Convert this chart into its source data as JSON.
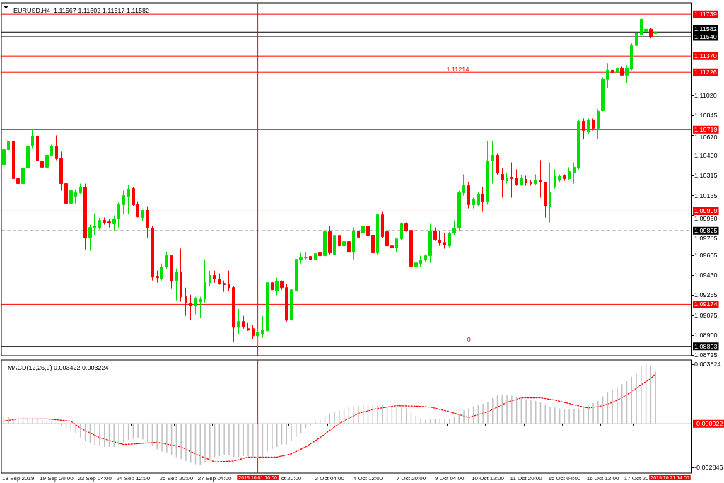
{
  "chart_data": [
    {
      "type": "candlestick",
      "title": "EURUSD,H4  1.11567 1.11602 1.11517 1.11582",
      "tick_labels": "y",
      "categories": [
        null,
        null,
        null,
        "18 Sep 2019",
        null,
        null,
        null,
        null,
        null,
        null,
        null,
        "19 Sep 20:00",
        null,
        null,
        null,
        null,
        null,
        null,
        null,
        "23 Sep 04:00",
        null,
        null,
        null,
        null,
        null,
        null,
        null,
        "24 Sep 12:00",
        null,
        null,
        null,
        null,
        null,
        null,
        null,
        null,
        "25 Sep 20:00",
        null,
        null,
        null,
        null,
        null,
        null,
        null,
        "27 Sep 04:00",
        null,
        null,
        null,
        null,
        null,
        null,
        null,
        null,
        "2019.10.01 10:00",
        null,
        null,
        null,
        null,
        null,
        null,
        "ct 20:00",
        null,
        null,
        null,
        null,
        null,
        null,
        null,
        "3 Oct 04:00",
        null,
        null,
        null,
        null,
        null,
        null,
        null,
        "4 Oct 12:00",
        null,
        null,
        null,
        null,
        null,
        null,
        null,
        null,
        "7 Oct 20:00",
        null,
        null,
        null,
        null,
        null,
        null,
        null,
        "9 Oct 04:00",
        null,
        null,
        null,
        null,
        null,
        null,
        null,
        "10 Oct 12:00",
        null,
        null,
        null,
        null,
        null,
        null,
        null,
        "11 Oct 20:00",
        null,
        null,
        null,
        null,
        null,
        null,
        null,
        "15 Oct 04:00",
        null,
        null,
        null,
        null,
        null,
        null,
        null,
        "16 Oct 12:00",
        null,
        null,
        null,
        null,
        null,
        null,
        "17 Oct 20",
        null,
        null,
        null,
        null,
        null,
        null,
        "2019.10.21 14:00",
        null,
        null,
        null,
        null
      ],
      "colors": [
        "#00e000",
        "#00e000",
        "#ff0000",
        "#ff0000",
        "#00e000",
        "#00e000",
        "#00e000",
        "#ff0000",
        "#ff0000",
        "#00e000",
        "#00e000",
        "#ff0000",
        "#ff0000",
        "#ff0000",
        "#00e000",
        "#00e000",
        "#00e000",
        "#ff0000",
        "#00e000",
        "#00e000",
        "#00e000",
        "#ff0000",
        "#ff0000",
        "#00e000",
        "#00e000",
        "#00e000",
        "#00e000",
        "#ff0000",
        "#ff0000",
        "#00e000",
        "#ff0000",
        "#ff0000",
        "#ff0000",
        "#00e000",
        "#00e000",
        "#ff0000",
        "#00e000",
        "#ff0000",
        "#ff0000",
        "#ff0000",
        "#00e000",
        "#00e000",
        "#00e000",
        "#00e000",
        "#ff0000",
        "#ff0000",
        "#ff0000",
        "#ff0000",
        "#ff0000",
        "#00e000",
        "#ff0000",
        "#ff0000",
        "#ff0000",
        "#00e000",
        "#00e000",
        "#00e000",
        "#ff0000",
        "#00e000",
        "#ff0000",
        "#ff0000",
        "#00e000",
        "#00e000",
        "#00e000",
        "#808080",
        "#ff0000",
        "#00e000",
        "#ff0000",
        "#00e000",
        "#ff0000",
        "#00e000",
        "#ff0000",
        "#00e000",
        "#ff0000",
        "#00e000",
        "#ff0000",
        "#00e000",
        "#ff0000",
        "#ff0000",
        "#00e000",
        "#ff0000",
        "#ff0000",
        "#ff0000",
        "#00e000",
        "#00e000",
        "#ff0000",
        "#ff0000",
        "#00e000",
        "#00e000",
        "#00e000",
        "#00e000",
        "#ff0000",
        "#ff0000",
        "#ff0000",
        "#00e000",
        "#00e000",
        "#00e000",
        "#00e000",
        "#ff0000",
        "#00e000",
        "#00e000",
        "#ff0000",
        "#00e000",
        "#00e000",
        "#ff0000",
        "#ff0000",
        "#00e000",
        "#ff0000",
        "#ff0000",
        "#00e000",
        "#ff0000",
        "#ff0000",
        "#00e000",
        "#ff0000",
        "#ff0000",
        "#00e000",
        "#00e000",
        "#00e000",
        "#ff0000",
        "#00e000",
        "#00e000",
        "#00e000",
        "#ff0000",
        "#00e000",
        "#ff0000",
        "#00e000",
        "#00e000",
        "#00e000",
        "#ff0000",
        "#00e000",
        "#ff0000",
        "#00e000",
        "#00e000",
        "#00e000",
        "#00e000",
        "#00e000",
        "#ff0000",
        "#00e000",
        null,
        null,
        null,
        null,
        null,
        null,
        null
      ],
      "ohlc": [
        [
          1.10411,
          1.10587,
          1.10368,
          1.10542
        ],
        [
          1.10542,
          1.10668,
          1.10449,
          1.10618
        ],
        [
          1.10618,
          1.10668,
          1.1013,
          1.10286
        ],
        [
          1.10286,
          1.10337,
          1.10211,
          1.10242
        ],
        [
          1.10242,
          1.10387,
          1.10223,
          1.10381
        ],
        [
          1.10381,
          1.10587,
          1.10368,
          1.10574
        ],
        [
          1.10574,
          1.10724,
          1.10555,
          1.10662
        ],
        [
          1.10662,
          1.10681,
          1.10381,
          1.10443
        ],
        [
          1.10443,
          1.10618,
          1.10381,
          1.10387
        ],
        [
          1.10387,
          1.10512,
          1.10381,
          1.10493
        ],
        [
          1.10493,
          1.10587,
          1.1048,
          1.10574
        ],
        [
          1.10574,
          1.10668,
          1.10449,
          1.10462
        ],
        [
          1.10462,
          1.10524,
          1.1018,
          1.10242
        ],
        [
          1.10242,
          1.10255,
          1.09948,
          1.10067
        ],
        [
          1.10067,
          1.10211,
          1.10055,
          1.1018
        ],
        [
          1.1013,
          1.10192,
          1.10067,
          1.10161
        ],
        [
          1.10161,
          1.10242,
          1.10149,
          1.10211
        ],
        [
          1.10211,
          1.10242,
          1.0966,
          1.0976
        ],
        [
          1.0976,
          1.09879,
          1.09648,
          1.09854
        ],
        [
          1.09848,
          1.09979,
          1.09785,
          1.09867
        ],
        [
          1.09854,
          1.09942,
          1.09836,
          1.09917
        ],
        [
          1.09917,
          1.09942,
          1.09879,
          1.09898
        ],
        [
          1.09904,
          1.09929,
          1.09854,
          1.09892
        ],
        [
          1.09886,
          1.09961,
          1.09823,
          1.09929
        ],
        [
          1.09929,
          1.10074,
          1.09854,
          1.10055
        ],
        [
          1.10055,
          1.1018,
          1.09973,
          1.10136
        ],
        [
          1.1013,
          1.1023,
          1.09973,
          1.10192
        ],
        [
          1.10198,
          1.10211,
          1.10042,
          1.10055
        ],
        [
          1.10055,
          1.10086,
          1.09942,
          1.09948
        ],
        [
          1.09942,
          1.10011,
          1.09911,
          1.10005
        ],
        [
          1.10005,
          1.10036,
          1.0976,
          1.09854
        ],
        [
          1.09848,
          1.09867,
          1.09385,
          1.09416
        ],
        [
          1.09423,
          1.09473,
          1.09366,
          1.0941
        ],
        [
          1.09398,
          1.09535,
          1.09385,
          1.09504
        ],
        [
          1.09504,
          1.09635,
          1.09491,
          1.09604
        ],
        [
          1.09604,
          1.09604,
          1.09316,
          1.09379
        ],
        [
          1.09379,
          1.09491,
          1.0921,
          1.0946
        ],
        [
          1.0946,
          1.09667,
          1.09197,
          1.09241
        ],
        [
          1.09241,
          1.09322,
          1.09072,
          1.09191
        ],
        [
          1.09185,
          1.0926,
          1.09034,
          1.0916
        ],
        [
          1.0916,
          1.09241,
          1.09085,
          1.09222
        ],
        [
          1.09197,
          1.09241,
          1.09053,
          1.09216
        ],
        [
          1.09222,
          1.09573,
          1.09191,
          1.09366
        ],
        [
          1.09366,
          1.09473,
          1.09335,
          1.09429
        ],
        [
          1.09429,
          1.09473,
          1.09366,
          1.09398
        ],
        [
          1.09398,
          1.09448,
          1.09348,
          1.09354
        ],
        [
          1.0936,
          1.09385,
          1.09285,
          1.09348
        ],
        [
          1.09354,
          1.09473,
          1.09291,
          1.09322
        ],
        [
          1.09322,
          1.09335,
          1.08846,
          1.08971
        ],
        [
          1.08971,
          1.09134,
          1.08909,
          1.09022
        ],
        [
          1.09022,
          1.09072,
          1.08959,
          1.08978
        ],
        [
          1.08959,
          1.09009,
          1.0894,
          1.08946
        ],
        [
          1.08959,
          1.0899,
          1.08865,
          1.08896
        ],
        [
          1.08896,
          1.08959,
          1.08803,
          1.08928
        ],
        [
          1.08915,
          1.09072,
          1.08878,
          1.08946
        ],
        [
          1.0894,
          1.09416,
          1.08834,
          1.09366
        ],
        [
          1.09366,
          1.09398,
          1.09241,
          1.09303
        ],
        [
          1.09291,
          1.0941,
          1.09254,
          1.09379
        ],
        [
          1.09379,
          1.09385,
          1.09303,
          1.09322
        ],
        [
          1.09322,
          1.09354,
          1.09022,
          1.09034
        ],
        [
          1.09034,
          1.09322,
          1.09022,
          1.09303
        ],
        [
          1.09291,
          1.09585,
          1.09285,
          1.09573
        ],
        [
          1.09567,
          1.09629,
          1.09535,
          1.09585
        ],
        [
          1.09585,
          1.09635,
          1.09573,
          1.09585
        ],
        [
          1.09598,
          1.09604,
          1.0951,
          1.09567
        ],
        [
          1.09567,
          1.09729,
          1.09398,
          1.09623
        ],
        [
          1.09629,
          1.09698,
          1.09435,
          1.09604
        ],
        [
          1.09604,
          1.09992,
          1.0951,
          1.09817
        ],
        [
          1.09817,
          1.09867,
          1.09616,
          1.09629
        ],
        [
          1.09616,
          1.09785,
          1.09604,
          1.09779
        ],
        [
          1.09779,
          1.09836,
          1.09679,
          1.09691
        ],
        [
          1.09691,
          1.09773,
          1.09679,
          1.09729
        ],
        [
          1.09729,
          1.09911,
          1.09554,
          1.09635
        ],
        [
          1.09635,
          1.09854,
          1.09573,
          1.09823
        ],
        [
          1.09823,
          1.09836,
          1.09754,
          1.09767
        ],
        [
          1.09804,
          1.09886,
          1.09698,
          1.09867
        ],
        [
          1.09867,
          1.09886,
          1.0976,
          1.09779
        ],
        [
          1.09785,
          1.09804,
          1.09604,
          1.09629
        ],
        [
          1.09629,
          1.09973,
          1.09616,
          1.09967
        ],
        [
          1.09967,
          1.09992,
          1.0976,
          1.09773
        ],
        [
          1.09817,
          1.09836,
          1.09679,
          1.09691
        ],
        [
          1.09691,
          1.09742,
          1.09635,
          1.09673
        ],
        [
          1.09673,
          1.0976,
          1.09635,
          1.09754
        ],
        [
          1.09754,
          1.09898,
          1.09742,
          1.09886
        ],
        [
          1.09886,
          1.09898,
          1.09817,
          1.09823
        ],
        [
          1.09829,
          1.09854,
          1.09441,
          1.0951
        ],
        [
          1.0951,
          1.09604,
          1.0941,
          1.09541
        ],
        [
          1.09535,
          1.09604,
          1.09504,
          1.09567
        ],
        [
          1.09567,
          1.09616,
          1.09554,
          1.09604
        ],
        [
          1.09604,
          1.09886,
          1.09541,
          1.09823
        ],
        [
          1.09823,
          1.09854,
          1.09735,
          1.09748
        ],
        [
          1.09742,
          1.09823,
          1.09691,
          1.09717
        ],
        [
          1.09723,
          1.09804,
          1.09667,
          1.09698
        ],
        [
          1.09691,
          1.09817,
          1.09679,
          1.09804
        ],
        [
          1.09804,
          1.09917,
          1.09785,
          1.09848
        ],
        [
          1.09848,
          1.1018,
          1.09823,
          1.10161
        ],
        [
          1.10161,
          1.10324,
          1.10136,
          1.10223
        ],
        [
          1.10223,
          1.10255,
          1.10023,
          1.10055
        ],
        [
          1.10055,
          1.10117,
          1.10023,
          1.10098
        ],
        [
          1.10055,
          1.10167,
          1.10042,
          1.10149
        ],
        [
          1.10149,
          1.10211,
          1.09992,
          1.10086
        ],
        [
          1.10086,
          1.10618,
          1.10055,
          1.10443
        ],
        [
          1.10443,
          1.10618,
          1.10242,
          1.10493
        ],
        [
          1.10493,
          1.10505,
          1.10317,
          1.10337
        ],
        [
          1.10324,
          1.10381,
          1.10117,
          1.10274
        ],
        [
          1.10267,
          1.10337,
          1.10242,
          1.10292
        ],
        [
          1.10299,
          1.1043,
          1.10117,
          1.10286
        ],
        [
          1.10286,
          1.10368,
          1.10223,
          1.1023
        ],
        [
          1.1023,
          1.10317,
          1.10223,
          1.10286
        ],
        [
          1.1028,
          1.10311,
          1.10223,
          1.10249
        ],
        [
          1.10255,
          1.10274,
          1.10223,
          1.10242
        ],
        [
          1.10242,
          1.10324,
          1.1023,
          1.10274
        ],
        [
          1.10274,
          1.10449,
          1.10117,
          1.10255
        ],
        [
          1.10255,
          1.10255,
          1.09942,
          1.10042
        ],
        [
          1.10036,
          1.1043,
          1.09898,
          1.10161
        ],
        [
          1.10211,
          1.10368,
          1.10198,
          1.10305
        ],
        [
          1.10274,
          1.10324,
          1.10255,
          1.10305
        ],
        [
          1.10311,
          1.10324,
          1.10267,
          1.10286
        ],
        [
          1.10286,
          1.10387,
          1.10274,
          1.10349
        ],
        [
          1.10337,
          1.1043,
          1.10242,
          1.10387
        ],
        [
          1.10381,
          1.10806,
          1.10368,
          1.10793
        ],
        [
          1.10793,
          1.10818,
          1.10637,
          1.10712
        ],
        [
          1.10699,
          1.10818,
          1.10681,
          1.10806
        ],
        [
          1.10806,
          1.10818,
          1.10712,
          1.10731
        ],
        [
          1.10731,
          1.109,
          1.10637,
          1.10881
        ],
        [
          1.10887,
          1.11181,
          1.10881,
          1.11163
        ],
        [
          1.11163,
          1.11307,
          1.11088,
          1.11244
        ],
        [
          1.11244,
          1.11275,
          1.112,
          1.11225
        ],
        [
          1.11225,
          1.11275,
          1.11213,
          1.11263
        ],
        [
          1.11263,
          1.11275,
          1.11194,
          1.112
        ],
        [
          1.112,
          1.11288,
          1.11131,
          1.11263
        ],
        [
          1.11257,
          1.11482,
          1.11244,
          1.11463
        ],
        [
          1.11463,
          1.11588,
          1.11432,
          1.11576
        ],
        [
          1.11557,
          1.11701,
          1.11545,
          1.11695
        ],
        [
          1.11588,
          1.11632,
          1.11476,
          1.11607
        ],
        [
          1.11607,
          1.1162,
          1.11526,
          1.11538
        ],
        [
          1.11567,
          1.11602,
          1.11517,
          1.11582
        ],
        null,
        null,
        null,
        null,
        null,
        null,
        null
      ],
      "ylim": [
        1.0872,
        1.1184
      ],
      "yticks": [
        1.08725,
        {
          "value": 1.089,
          "label": "1.08900"
        },
        1.09075,
        1.09255,
        {
          "value": 1.0943,
          "label": "1.09430"
        },
        1.09605,
        1.09785,
        {
          "value": 1.0996,
          "label": "1.09960"
        },
        1.10135,
        1.10315,
        {
          "value": 1.1049,
          "label": "1.10490"
        },
        {
          "value": 1.1067,
          "label": "1.10670"
        },
        1.10845,
        {
          "value": 1.1102,
          "label": "1.11020"
        }
      ],
      "ref_lines": [
        {
          "axis": "y",
          "value": 1.11739,
          "label": "1.11739",
          "color": "#ff0000"
        },
        {
          "axis": "y",
          "value": 1.11582,
          "label": "1.11582",
          "color": "#000000"
        },
        {
          "axis": "y",
          "value": 1.1154,
          "label": "1.11540",
          "color": "#000000"
        },
        {
          "axis": "y",
          "value": 1.1137,
          "label": "1.11370",
          "color": "#ff0000"
        },
        {
          "axis": "y",
          "value": 1.11226,
          "label": "1.11226",
          "color": "#ff0000"
        },
        {
          "axis": "y",
          "value": 1.10719,
          "label": "1.10719",
          "color": "#ff0000"
        },
        {
          "axis": "y",
          "value": 1.09999,
          "label": "1.09999",
          "color": "#ff0000"
        },
        {
          "axis": "y",
          "value": 1.09825,
          "label": "1.09825",
          "color": "#000000",
          "line_style": "dashed"
        },
        {
          "axis": "y",
          "value": 1.09174,
          "label": "1.09174",
          "color": "#ff0000"
        },
        {
          "axis": "y",
          "value": 1.08803,
          "label": "1.08803",
          "color": "#000000"
        },
        {
          "axis": "x",
          "value": "2019.10.01 10:00",
          "color": "#ff0000"
        },
        {
          "axis": "x",
          "value": "2019.10.21 14:00",
          "color": "#ff0000",
          "line_style": "dotted"
        }
      ],
      "annotations": [
        "1.11214",
        "0"
      ]
    },
    {
      "type": "bar",
      "title": "MACD(12,26,9) 0.003422 0.003224",
      "categories": [
        null,
        null,
        null,
        "18 Sep 2019",
        null,
        null,
        null,
        null,
        null,
        null,
        null,
        "19 Sep 20:00",
        null,
        null,
        null,
        null,
        null,
        null,
        null,
        "23 Sep 04:00",
        null,
        null,
        null,
        null,
        null,
        null,
        null,
        "24 Sep 12:00",
        null,
        null,
        null,
        null,
        null,
        null,
        null,
        null,
        "25 Sep 20:00",
        null,
        null,
        null,
        null,
        null,
        null,
        null,
        "27 Sep 04:00",
        null,
        null,
        null,
        null,
        null,
        null,
        null,
        null,
        "2019.10.01 10:00",
        null,
        null,
        null,
        null,
        null,
        null,
        "ct 20:00",
        null,
        null,
        null,
        null,
        null,
        null,
        null,
        "3 Oct 04:00",
        null,
        null,
        null,
        null,
        null,
        null,
        null,
        "4 Oct 12:00",
        null,
        null,
        null,
        null,
        null,
        null,
        null,
        null,
        "7 Oct 20:00",
        null,
        null,
        null,
        null,
        null,
        null,
        null,
        "9 Oct 04:00",
        null,
        null,
        null,
        null,
        null,
        null,
        null,
        "10 Oct 12:00",
        null,
        null,
        null,
        null,
        null,
        null,
        null,
        "11 Oct 20:00",
        null,
        null,
        null,
        null,
        null,
        null,
        null,
        "15 Oct 04:00",
        null,
        null,
        null,
        null,
        null,
        null,
        null,
        "16 Oct 12:00",
        null,
        null,
        null,
        null,
        null,
        null,
        "17 Oct 20",
        null,
        null,
        null,
        null,
        null,
        null,
        "2019.10.21 14:00",
        null,
        null,
        null,
        null
      ],
      "series": [
        {
          "color": "#c0c0c0",
          "values": [
            0.00045,
            0.00039,
            0.0003,
            0.00024,
            0.00024,
            0.00027,
            0.0003,
            0.00027,
            0.00024,
            0.00015,
            0.0001,
            0,
            -0.00015,
            -0.0003,
            -0.00045,
            -0.00066,
            -0.00091,
            -0.00115,
            -0.00127,
            -0.00139,
            -0.00145,
            -0.00151,
            -0.00151,
            -0.00151,
            -0.00139,
            -0.00121,
            -0.00106,
            -0.001,
            -0.00097,
            -0.00103,
            -0.00121,
            -0.00145,
            -0.00166,
            -0.00181,
            -0.00187,
            -0.00205,
            -0.00217,
            -0.0023,
            -0.00242,
            -0.00254,
            -0.00263,
            -0.00266,
            -0.00248,
            -0.0023,
            -0.00217,
            -0.00211,
            -0.00205,
            -0.00205,
            -0.00217,
            -0.00217,
            -0.00211,
            -0.00211,
            -0.00217,
            -0.00223,
            -0.00217,
            -0.00181,
            -0.00166,
            -0.00151,
            -0.00136,
            -0.00136,
            -0.00115,
            -0.00085,
            -0.0006,
            -0.0003,
            -0.00015,
            0.0001,
            0.00024,
            0.00048,
            0.00066,
            0.00076,
            0.00085,
            0.00097,
            0.00103,
            0.00109,
            0.00115,
            0.00118,
            0.00121,
            0.00121,
            0.00121,
            0.00118,
            0.00112,
            0.00109,
            0.00106,
            0.00103,
            0.00097,
            0.00076,
            0.00051,
            0.0003,
            0.00024,
            0.0003,
            0.0003,
            0.0003,
            0.0003,
            0.00033,
            0.00039,
            0.0006,
            0.00085,
            0.00097,
            0.00112,
            0.00121,
            0.00127,
            0.00136,
            0.00163,
            0.00181,
            0.00187,
            0.00187,
            0.00181,
            0.00172,
            0.00163,
            0.00157,
            0.00151,
            0.00145,
            0.00139,
            0.00121,
            0.00109,
            0.00103,
            0.00097,
            0.00091,
            0.00091,
            0.00091,
            0.00097,
            0.00103,
            0.00115,
            0.00133,
            0.00145,
            0.00175,
            0.00199,
            0.00217,
            0.00236,
            0.00254,
            0.00272,
            0.00302,
            0.0032,
            0.0037,
            0.00382,
            0.00376,
            0.00342,
            null,
            null,
            null,
            null,
            null,
            null,
            null
          ]
        },
        {
          "type": "line",
          "color": "#ff0000",
          "line_style": "dotted",
          "marker": "none",
          "values": [
            0.00015,
            null,
            null,
            0.0003,
            null,
            null,
            null,
            null,
            null,
            0.0003,
            null,
            null,
            null,
            null,
            0.00015,
            null,
            -0.0003,
            null,
            null,
            null,
            -0.00091,
            null,
            null,
            null,
            null,
            -0.00136,
            null,
            null,
            -0.0013,
            null,
            null,
            null,
            -0.00121,
            null,
            null,
            null,
            null,
            -0.00151,
            null,
            null,
            -0.00196,
            null,
            null,
            null,
            -0.00248,
            null,
            null,
            null,
            -0.00242,
            null,
            null,
            -0.00217,
            null,
            null,
            null,
            null,
            null,
            -0.00217,
            null,
            null,
            -0.00196,
            null,
            null,
            -0.00151,
            null,
            null,
            -0.00091,
            null,
            -0.00045,
            null,
            0,
            null,
            null,
            null,
            0.00066,
            null,
            null,
            null,
            0.00097,
            null,
            null,
            null,
            0.00115,
            null,
            null,
            null,
            0.00112,
            null,
            null,
            0.00106,
            null,
            null,
            null,
            0.00076,
            null,
            null,
            null,
            0.00039,
            null,
            null,
            null,
            0.00076,
            null,
            null,
            null,
            0.00136,
            null,
            null,
            0.00166,
            null,
            null,
            null,
            0.00166,
            null,
            null,
            0.00151,
            null,
            null,
            null,
            0.00121,
            null,
            null,
            0.001,
            null,
            null,
            0.00115,
            null,
            0.00136,
            null,
            0.00166,
            null,
            0.00205,
            null,
            0.0025,
            null,
            0.0029,
            0.00322,
            null,
            null,
            null,
            null,
            null,
            null,
            null
          ]
        }
      ],
      "ylim": [
        -0.0032,
        0.0041
      ],
      "yticks": [
        -0.002846,
        0.003824
      ],
      "ref_lines": [
        {
          "axis": "y",
          "value": -2.2e-05,
          "label": "-0.000022",
          "color": "#ff0000"
        },
        {
          "axis": "x",
          "value": "2019.10.01 10:00",
          "color": "#ff0000"
        },
        {
          "axis": "x",
          "value": "2019.10.21 14:00",
          "color": "#ff0000",
          "line_style": "dotted"
        }
      ]
    }
  ]
}
